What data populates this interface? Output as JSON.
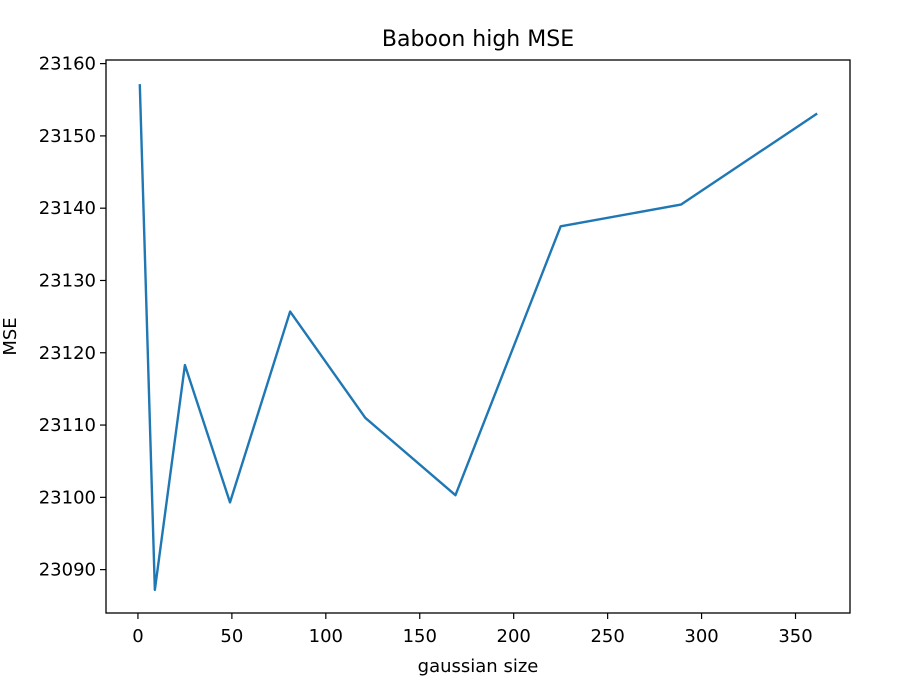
{
  "chart_data": {
    "type": "line",
    "title": "Baboon high MSE",
    "xlabel": "gaussian size",
    "ylabel": "MSE",
    "xlim": [
      -17.0,
      379.0
    ],
    "ylim": [
      23084.0,
      23160.5
    ],
    "xticks": [
      0,
      50,
      100,
      150,
      200,
      250,
      300,
      350
    ],
    "yticks": [
      23090,
      23100,
      23110,
      23120,
      23130,
      23140,
      23150,
      23160
    ],
    "grid": false,
    "legend": "none",
    "series": [
      {
        "color": "#1f77b4",
        "x": [
          1,
          9,
          25,
          49,
          81,
          121,
          169,
          225,
          289,
          361
        ],
        "y": [
          23157,
          23087.2,
          23118.3,
          23099.3,
          23125.7,
          23111.0,
          23100.3,
          23137.5,
          23140.5,
          23153.0
        ]
      }
    ]
  }
}
